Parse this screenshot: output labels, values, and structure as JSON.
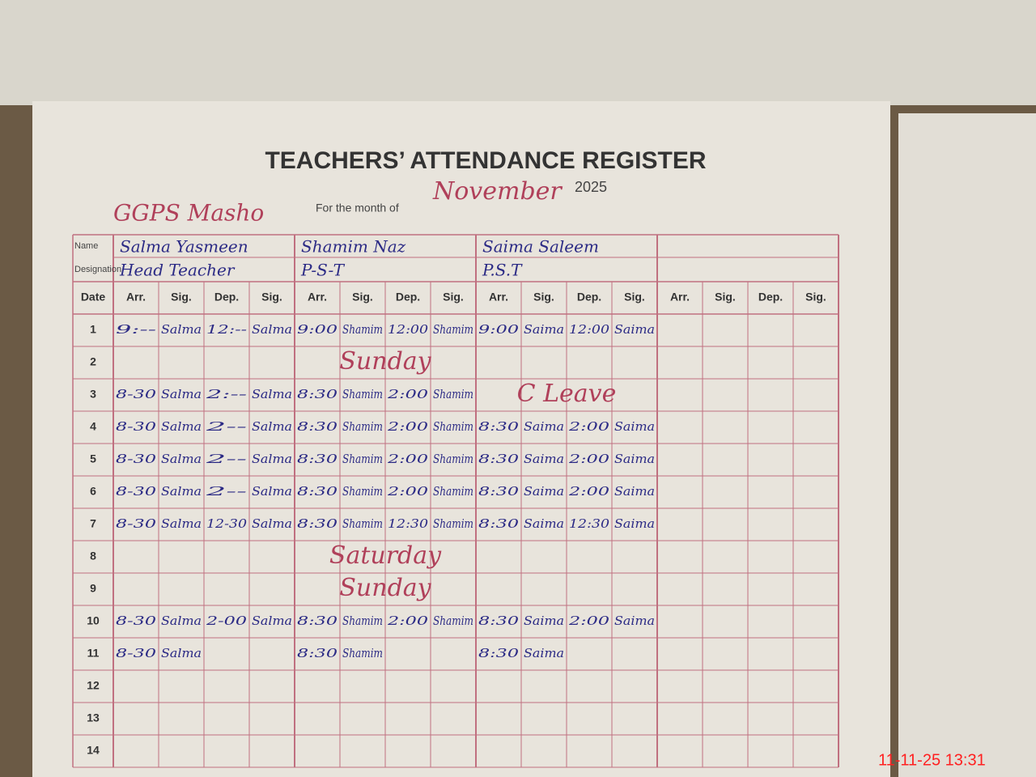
{
  "header": {
    "title": "TEACHERS’ ATTENDANCE REGISTER",
    "school": "GGPS Masho",
    "month_label": "For the month of",
    "month": "November",
    "year": "2025",
    "name_label": "Name",
    "designation_label": "Designation"
  },
  "table": {
    "date_header": "Date",
    "group_headers": [
      "Arr.",
      "Sig.",
      "Dep.",
      "Sig."
    ],
    "teachers": [
      {
        "name": "Salma Yasmeen",
        "designation": "Head Teacher"
      },
      {
        "name": "Shamim Naz",
        "designation": "P-S-T"
      },
      {
        "name": "Saima Saleem",
        "designation": "P.S.T"
      }
    ],
    "rows": [
      {
        "date": "1",
        "cells": [
          [
            "9:--",
            "Salma",
            "12:--",
            "Salma"
          ],
          [
            "9:00",
            "Shamim",
            "12:00",
            "Shamim"
          ],
          [
            "9:00",
            "Saima",
            "12:00",
            "Saima"
          ]
        ]
      },
      {
        "date": "2",
        "note": "Sunday"
      },
      {
        "date": "3",
        "cells": [
          [
            "8-30",
            "Salma",
            "2:--",
            "Salma"
          ],
          [
            "8:30",
            "Shamim",
            "2:00",
            "Shamim"
          ],
          "C Leave"
        ]
      },
      {
        "date": "4",
        "cells": [
          [
            "8-30",
            "Salma",
            "2--",
            "Salma"
          ],
          [
            "8:30",
            "Shamim",
            "2:00",
            "Shamim"
          ],
          [
            "8:30",
            "Saima",
            "2:00",
            "Saima"
          ]
        ]
      },
      {
        "date": "5",
        "cells": [
          [
            "8-30",
            "Salma",
            "2--",
            "Salma"
          ],
          [
            "8:30",
            "Shamim",
            "2:00",
            "Shamim"
          ],
          [
            "8:30",
            "Saima",
            "2:00",
            "Saima"
          ]
        ]
      },
      {
        "date": "6",
        "cells": [
          [
            "8-30",
            "Salma",
            "2--",
            "Salma"
          ],
          [
            "8:30",
            "Shamim",
            "2:00",
            "Shamim"
          ],
          [
            "8:30",
            "Saima",
            "2:00",
            "Saima"
          ]
        ]
      },
      {
        "date": "7",
        "cells": [
          [
            "8-30",
            "Salma",
            "12-30",
            "Salma"
          ],
          [
            "8:30",
            "Shamim",
            "12:30",
            "Shamim"
          ],
          [
            "8:30",
            "Saima",
            "12:30",
            "Saima"
          ]
        ]
      },
      {
        "date": "8",
        "note": "Saturday"
      },
      {
        "date": "9",
        "note": "Sunday"
      },
      {
        "date": "10",
        "cells": [
          [
            "8-30",
            "Salma",
            "2-00",
            "Salma"
          ],
          [
            "8:30",
            "Shamim",
            "2:00",
            "Shamim"
          ],
          [
            "8:30",
            "Saima",
            "2:00",
            "Saima"
          ]
        ]
      },
      {
        "date": "11",
        "cells": [
          [
            "8-30",
            "Salma",
            null,
            null
          ],
          [
            "8:30",
            "Shamim",
            null,
            null
          ],
          [
            "8:30",
            "Saima",
            null,
            null
          ]
        ]
      },
      {
        "date": "12"
      },
      {
        "date": "13"
      },
      {
        "date": "14"
      }
    ]
  },
  "timestamp": "11-11-25 13:31"
}
